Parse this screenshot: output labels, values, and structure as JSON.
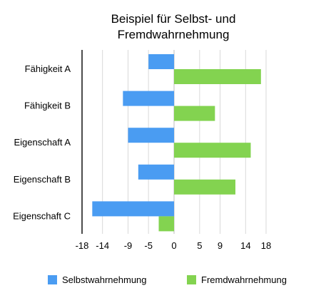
{
  "chart_data": {
    "type": "bar",
    "orientation": "horizontal",
    "title": [
      "Beispiel für Selbst- und",
      "Fremdwahrnehmung"
    ],
    "categories": [
      "Fähigkeit A",
      "Fähigkeit B",
      "Eigenschaft A",
      "Eigenschaft B",
      "Eigenschaft C"
    ],
    "series": [
      {
        "name": "Selbstwahrnehmung",
        "color": "#4a9cf2",
        "values": [
          -5,
          -10,
          -9,
          -7,
          -16
        ]
      },
      {
        "name": "Fremdwahrnehmung",
        "color": "#83d350",
        "values": [
          17,
          8,
          15,
          12,
          -3
        ]
      }
    ],
    "x_ticks": [
      "-18",
      "-14",
      "-9",
      "-5",
      "0",
      "5",
      "9",
      "14",
      "18"
    ],
    "xlim": [
      -18,
      18
    ],
    "grid": "vertical",
    "legend_position": "bottom"
  }
}
